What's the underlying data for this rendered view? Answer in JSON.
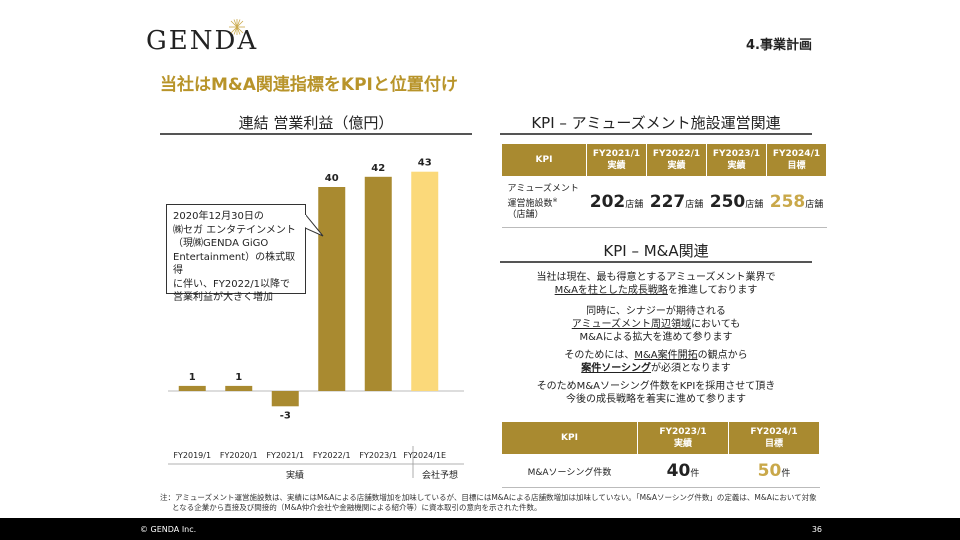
{
  "logo_text": "GENDA",
  "section_label": "4.事業計画",
  "headline": "当社はM&A関連指標をKPIと位置付け",
  "chart_data": {
    "type": "bar",
    "title": "連結 営業利益（億円）",
    "categories": [
      "FY2019/1",
      "FY2020/1",
      "FY2021/1",
      "FY2022/1",
      "FY2023/1",
      "FY2024/1E"
    ],
    "values": [
      1,
      1,
      -3,
      40,
      42,
      43
    ],
    "value_labels": [
      "1",
      "1",
      "-3",
      "40",
      "42",
      "43"
    ],
    "group_labels": [
      "実績",
      "会社予想"
    ],
    "colors": [
      "#a98a30",
      "#a98a30",
      "#a98a30",
      "#a98a30",
      "#a98a30",
      "#fbd97a"
    ],
    "ylim": [
      -5,
      45
    ],
    "xlabel": "",
    "ylabel": ""
  },
  "callout_lines": [
    "2020年12月30日の",
    "㈱セガ エンタテインメント",
    "（現㈱GENDA GiGO",
    "Entertainment）の株式取得",
    "に伴い、FY2022/1以降で",
    "営業利益が大きく増加"
  ],
  "kpi1": {
    "title": "KPI – アミューズメント施設運営関連",
    "head_label": "KPI",
    "columns": [
      {
        "year": "FY2021/1",
        "kind": "実績"
      },
      {
        "year": "FY2022/1",
        "kind": "実績"
      },
      {
        "year": "FY2023/1",
        "kind": "実績"
      },
      {
        "year": "FY2024/1",
        "kind": "目標"
      }
    ],
    "row_label_lines": [
      "アミューズメント",
      "運営施設数",
      "（店舗）"
    ],
    "row_label_sup": "※",
    "values": [
      "202",
      "227",
      "250",
      "258"
    ],
    "unit": "店舗"
  },
  "ma": {
    "title": "KPI – M&A関連",
    "p1_line1": "当社は現在、最も得意とするアミューズメント業界で",
    "p1_line2": "M&Aを柱とした成長戦略",
    "p1_line2b": "を推進しております",
    "p2_line1": "同時に、シナジーが期待される",
    "p2_line2": "アミューズメント周辺領域",
    "p2_line2b": "においても",
    "p2_line3": "M&Aによる拡大を進めて参ります",
    "p3_line1a": "そのためには、",
    "p3_line1b": "M&A案件開拓",
    "p3_line1c": "の観点から",
    "p3_line2a": "案件ソーシング",
    "p3_line2b": "が必須となります",
    "p4_line1": "そのためM&Aソーシング件数をKPIを採用させて頂き",
    "p4_line2": "今後の成長戦略を着実に進めて参ります"
  },
  "kpi2": {
    "head_label": "KPI",
    "columns": [
      {
        "year": "FY2023/1",
        "kind": "実績"
      },
      {
        "year": "FY2024/1",
        "kind": "目標"
      }
    ],
    "row_label": "M&Aソーシング件数",
    "values": [
      "40",
      "50"
    ],
    "unit": "件"
  },
  "note_line1": "注：アミューズメント運営施設数は、実績にはM&Aによる店舗数増加を加味しているが、目標にはM&Aによる店舗数増加は加味していない。「M&Aソーシング件数」の定義は、M&Aにおいて対象",
  "note_line2": "となる企業から直接及び間接的（M&A仲介会社や金融機関による紹介等）に資本取引の意向を示された件数。",
  "footer": {
    "copyright": "© GENDA Inc.",
    "page": "36"
  }
}
